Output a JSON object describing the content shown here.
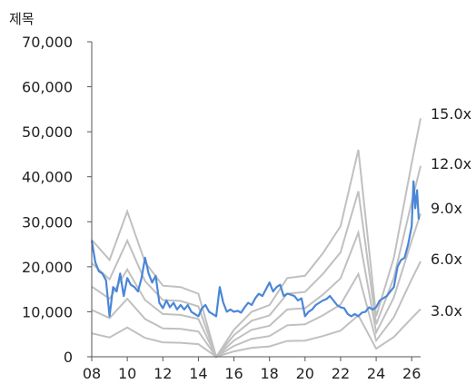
{
  "chart_data": {
    "type": "line",
    "title": "제목",
    "xlabel": "",
    "ylabel": "",
    "xlim": [
      2008,
      2026.5
    ],
    "ylim": [
      0,
      70000
    ],
    "x_ticks": [
      {
        "value": 2008,
        "label": "08"
      },
      {
        "value": 2010,
        "label": "10"
      },
      {
        "value": 2012,
        "label": "12"
      },
      {
        "value": 2014,
        "label": "14"
      },
      {
        "value": 2016,
        "label": "16"
      },
      {
        "value": 2018,
        "label": "18"
      },
      {
        "value": 2020,
        "label": "20"
      },
      {
        "value": 2022,
        "label": "22"
      },
      {
        "value": 2024,
        "label": "24"
      },
      {
        "value": 2026,
        "label": "26"
      }
    ],
    "y_ticks": [
      {
        "value": 0,
        "label": "0"
      },
      {
        "value": 10000,
        "label": "10,000"
      },
      {
        "value": 20000,
        "label": "20,000"
      },
      {
        "value": 30000,
        "label": "30,000"
      },
      {
        "value": 40000,
        "label": "40,000"
      },
      {
        "value": 50000,
        "label": "50,000"
      },
      {
        "value": 60000,
        "label": "60,000"
      },
      {
        "value": 70000,
        "label": "70,000"
      }
    ],
    "grid": false,
    "colors": {
      "price": "#4a86d8",
      "band": "#c0c0c0",
      "axis": "#555555"
    },
    "band_x": [
      2008,
      2009,
      2010,
      2011,
      2012,
      2013,
      2014,
      2015,
      2016,
      2017,
      2018,
      2019,
      2020,
      2021,
      2022,
      2023,
      2024,
      2025,
      2026,
      2026.5
    ],
    "band_lines": [
      {
        "label": "15.0x",
        "y": [
          26000,
          21500,
          32300,
          21000,
          15800,
          15500,
          14000,
          0,
          6000,
          10000,
          11500,
          17500,
          18000,
          23000,
          29000,
          46000,
          9000,
          22000,
          43000,
          53000
        ]
      },
      {
        "label": "12.0x",
        "y": [
          20800,
          17200,
          25800,
          16800,
          12600,
          12400,
          11200,
          0,
          4800,
          8000,
          9200,
          14000,
          14400,
          18400,
          23200,
          36800,
          7200,
          17600,
          34400,
          42400
        ]
      },
      {
        "label": "9.0x",
        "y": [
          15600,
          12900,
          19400,
          12600,
          9500,
          9300,
          8400,
          0,
          3600,
          6000,
          6900,
          10500,
          10800,
          13800,
          17400,
          27600,
          5400,
          13200,
          25800,
          31800
        ]
      },
      {
        "label": "6.0x",
        "y": [
          10400,
          8600,
          12900,
          8400,
          6300,
          6200,
          5600,
          0,
          2400,
          4000,
          4600,
          7000,
          7200,
          9200,
          11600,
          18400,
          3600,
          8800,
          17200,
          21200
        ]
      },
      {
        "label": "3.0x",
        "y": [
          5200,
          4300,
          6500,
          4200,
          3200,
          3100,
          2800,
          0,
          1200,
          2000,
          2300,
          3500,
          3600,
          4600,
          5800,
          9200,
          1800,
          4400,
          8600,
          10600
        ]
      }
    ],
    "series": [
      {
        "x": [
          2008,
          2008.2,
          2008.4,
          2008.6,
          2008.8,
          2009,
          2009.2,
          2009.4,
          2009.6,
          2009.8,
          2010,
          2010.2,
          2010.4,
          2010.6,
          2010.8,
          2011,
          2011.2,
          2011.4,
          2011.6,
          2011.8,
          2012,
          2012.2,
          2012.4,
          2012.6,
          2012.8,
          2013,
          2013.2,
          2013.4,
          2013.6,
          2013.8,
          2014,
          2014.2,
          2014.4,
          2014.6,
          2014.8,
          2015,
          2015.2,
          2015.4,
          2015.6,
          2015.8,
          2016,
          2016.2,
          2016.4,
          2016.6,
          2016.8,
          2017,
          2017.2,
          2017.4,
          2017.6,
          2017.8,
          2018,
          2018.2,
          2018.4,
          2018.6,
          2018.8,
          2019,
          2019.2,
          2019.4,
          2019.6,
          2019.8,
          2020,
          2020.2,
          2020.4,
          2020.6,
          2020.8,
          2021,
          2021.2,
          2021.4,
          2021.6,
          2021.8,
          2022,
          2022.2,
          2022.4,
          2022.6,
          2022.8,
          2023,
          2023.2,
          2023.4,
          2023.6,
          2023.8,
          2024,
          2024.2,
          2024.4,
          2024.6,
          2024.8,
          2025,
          2025.2,
          2025.4,
          2025.6,
          2025.8,
          2026,
          2026.1,
          2026.2,
          2026.3,
          2026.4
        ],
        "y": [
          25800,
          21000,
          19000,
          18500,
          17000,
          9000,
          15500,
          14500,
          18500,
          13500,
          17500,
          16000,
          15500,
          14500,
          17500,
          22000,
          18500,
          16500,
          18000,
          12000,
          10800,
          12500,
          11000,
          12000,
          10500,
          11500,
          10500,
          11500,
          10000,
          9500,
          9000,
          10800,
          11500,
          10000,
          9500,
          9000,
          15500,
          12000,
          10000,
          10500,
          10000,
          10200,
          9800,
          11000,
          12000,
          11500,
          13000,
          14000,
          13500,
          15000,
          16500,
          14500,
          15500,
          16000,
          13500,
          14000,
          13800,
          13500,
          12500,
          13000,
          9000,
          10000,
          10500,
          11500,
          12000,
          12500,
          12800,
          13500,
          12500,
          11500,
          11000,
          10800,
          9500,
          9000,
          9500,
          9000,
          9800,
          10000,
          11000,
          10500,
          11000,
          12500,
          13000,
          13500,
          14500,
          15500,
          20000,
          21500,
          22000,
          25000,
          29000,
          39000,
          33000,
          37000,
          30500
        ]
      }
    ]
  }
}
